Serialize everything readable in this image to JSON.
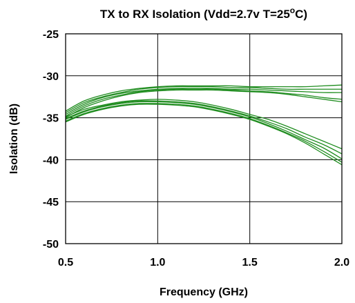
{
  "chart_data": {
    "type": "line",
    "title": "TX to RX Isolation (Vdd=2.7v T=25",
    "title_degree": "o",
    "title_suffix": "C)",
    "xlabel": "Frequency (GHz)",
    "ylabel": "Isolation (dB)",
    "xlim": [
      0.5,
      2.0
    ],
    "ylim": [
      -50,
      -25
    ],
    "xticks": [
      0.5,
      1.0,
      1.5,
      2.0
    ],
    "xtick_labels": [
      "0.5",
      "1.0",
      "1.5",
      "2.0"
    ],
    "yticks": [
      -25,
      -30,
      -35,
      -40,
      -45,
      -50
    ],
    "ytick_labels": [
      "-25",
      "-30",
      "-35",
      "-40",
      "-45",
      "-50"
    ],
    "grid": true,
    "legend": false,
    "line_color": "#1e8c1e",
    "x": [
      0.5,
      0.6,
      0.7,
      0.8,
      0.9,
      1.0,
      1.1,
      1.2,
      1.3,
      1.4,
      1.5,
      1.6,
      1.7,
      1.8,
      1.9,
      2.0
    ],
    "series": [
      {
        "values": [
          -34.2,
          -33.0,
          -32.3,
          -31.8,
          -31.5,
          -31.3,
          -31.2,
          -31.2,
          -31.2,
          -31.2,
          -31.3,
          -31.3,
          -31.3,
          -31.3,
          -31.2,
          -31.1
        ]
      },
      {
        "values": [
          -34.4,
          -33.2,
          -32.5,
          -32.0,
          -31.6,
          -31.4,
          -31.3,
          -31.3,
          -31.3,
          -31.4,
          -31.4,
          -31.5,
          -31.6,
          -31.6,
          -31.6,
          -31.6
        ]
      },
      {
        "values": [
          -34.6,
          -33.4,
          -32.6,
          -32.1,
          -31.8,
          -31.6,
          -31.5,
          -31.5,
          -31.5,
          -31.6,
          -31.6,
          -31.7,
          -31.8,
          -31.9,
          -32.0,
          -32.0
        ]
      },
      {
        "values": [
          -34.8,
          -33.6,
          -32.8,
          -32.3,
          -31.9,
          -31.7,
          -31.6,
          -31.6,
          -31.6,
          -31.7,
          -31.8,
          -31.9,
          -32.1,
          -32.3,
          -32.6,
          -32.8
        ]
      },
      {
        "values": [
          -35.0,
          -33.8,
          -33.0,
          -32.4,
          -32.0,
          -31.8,
          -31.7,
          -31.7,
          -31.7,
          -31.8,
          -31.9,
          -32.0,
          -32.2,
          -32.5,
          -32.8,
          -33.1
        ]
      },
      {
        "values": [
          -34.9,
          -34.0,
          -33.5,
          -33.1,
          -32.9,
          -32.8,
          -32.9,
          -33.1,
          -33.5,
          -34.0,
          -34.6,
          -35.2,
          -36.0,
          -36.9,
          -37.8,
          -38.7
        ]
      },
      {
        "values": [
          -35.1,
          -34.2,
          -33.6,
          -33.2,
          -33.0,
          -33.0,
          -33.1,
          -33.3,
          -33.7,
          -34.2,
          -34.8,
          -35.5,
          -36.3,
          -37.3,
          -38.2,
          -39.3
        ]
      },
      {
        "values": [
          -35.2,
          -34.3,
          -33.7,
          -33.3,
          -33.1,
          -33.1,
          -33.2,
          -33.4,
          -33.8,
          -34.3,
          -34.9,
          -35.7,
          -36.6,
          -37.6,
          -38.6,
          -39.9
        ]
      },
      {
        "values": [
          -35.4,
          -34.5,
          -33.9,
          -33.5,
          -33.3,
          -33.3,
          -33.4,
          -33.6,
          -34.0,
          -34.5,
          -35.1,
          -35.9,
          -36.8,
          -37.8,
          -39.0,
          -40.3
        ]
      },
      {
        "values": [
          -35.5,
          -34.6,
          -34.0,
          -33.6,
          -33.4,
          -33.4,
          -33.5,
          -33.7,
          -34.1,
          -34.6,
          -35.2,
          -36.0,
          -36.9,
          -38.0,
          -39.3,
          -40.6
        ]
      }
    ]
  }
}
